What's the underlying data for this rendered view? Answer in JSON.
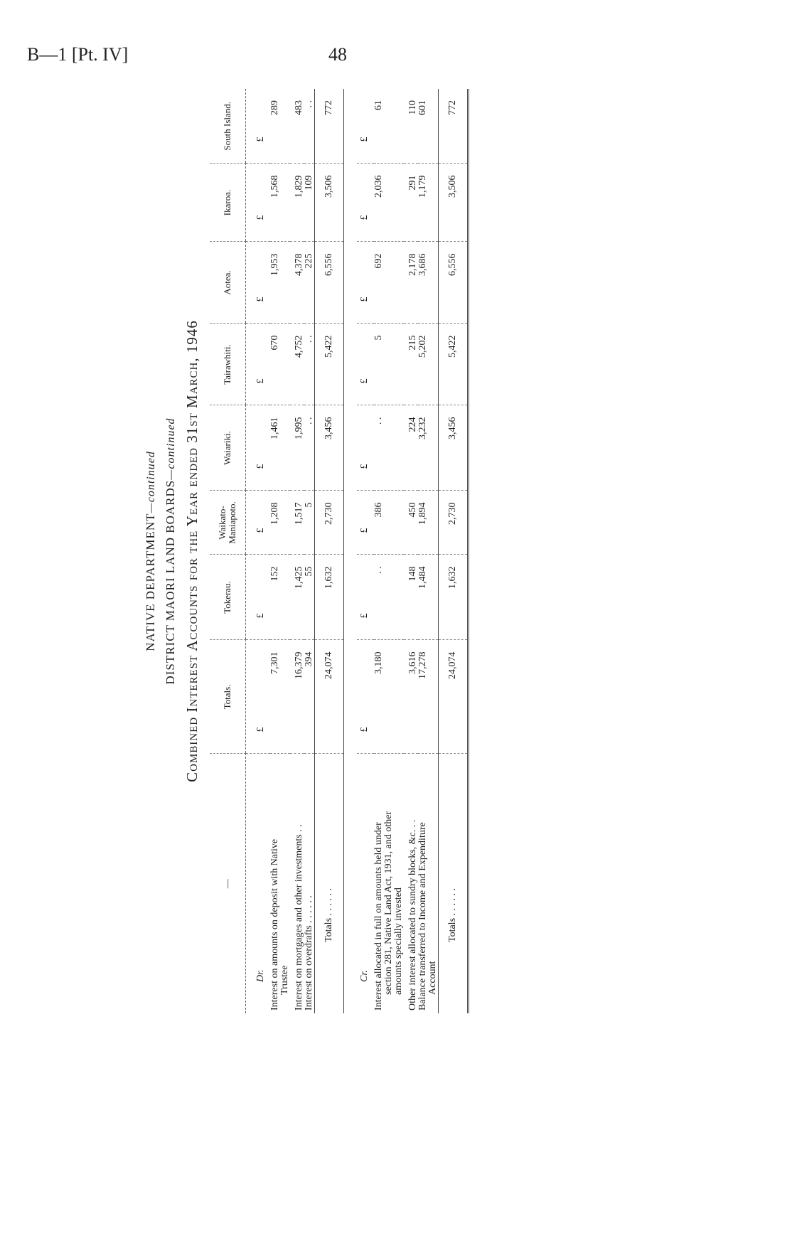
{
  "page_header": {
    "reference": "B—1 [Pt. IV]",
    "page_number": "48"
  },
  "titles": {
    "line1_main": "NATIVE DEPARTMENT",
    "line1_suffix": "—continued",
    "line2_main": "DISTRICT MAORI LAND BOARDS",
    "line2_suffix": "—continued",
    "line3": "Combined Interest Accounts for the Year ended 31st March, 1946"
  },
  "table": {
    "stub_header": "—",
    "columns": [
      "Totals.",
      "Tokerau.",
      "Waikato-Maniapoto.",
      "Waiariki.",
      "Tairawhiti.",
      "Aotea.",
      "Ikaroa.",
      "South Island."
    ],
    "currency": "£",
    "dr": {
      "label": "Dr.",
      "rows": [
        {
          "label_line1": "Interest on amounts on deposit with Native",
          "label_line2": "Trustee",
          "values": [
            "7,301",
            "152",
            "1,208",
            "1,461",
            "670",
            "1,953",
            "1,568",
            "289"
          ]
        },
        {
          "label_line1": "Interest on mortgages and other investments . .",
          "values": [
            "16,379",
            "1,425",
            "1,517",
            "1,995",
            "4,752",
            "4,378",
            "1,829",
            "483"
          ]
        },
        {
          "label_line1": "Interest on overdrafts . . . . . .",
          "values": [
            "394",
            "55",
            "5",
            ". .",
            ". .",
            "225",
            "109",
            ". ."
          ]
        }
      ],
      "totals": {
        "label": "Totals . . . . . .",
        "values": [
          "24,074",
          "1,632",
          "2,730",
          "3,456",
          "5,422",
          "6,556",
          "3,506",
          "772"
        ]
      }
    },
    "cr": {
      "label": "Cr.",
      "rows": [
        {
          "label_line1": "Interest allocated in full on amounts held under",
          "label_line2": "section 281, Native Land Act, 1931, and other",
          "label_line3": "amounts specially invested",
          "values": [
            "3,180",
            ". .",
            "386",
            ". .",
            "5",
            "692",
            "2,036",
            "61"
          ]
        },
        {
          "label_line1": "Other interest allocated to sundry blocks, &c. . .",
          "values": [
            "3,616",
            "148",
            "450",
            "224",
            "215",
            "2,178",
            "291",
            "110"
          ]
        },
        {
          "label_line1": "Balance transferred to Income and Expenditure",
          "label_line2": "Account",
          "values": [
            "17,278",
            "1,484",
            "1,894",
            "3,232",
            "5,202",
            "3,686",
            "1,179",
            "601"
          ]
        }
      ],
      "totals": {
        "label": "Totals . . . . . .",
        "values": [
          "24,074",
          "1,632",
          "2,730",
          "3,456",
          "5,422",
          "6,556",
          "3,506",
          "772"
        ]
      }
    }
  }
}
